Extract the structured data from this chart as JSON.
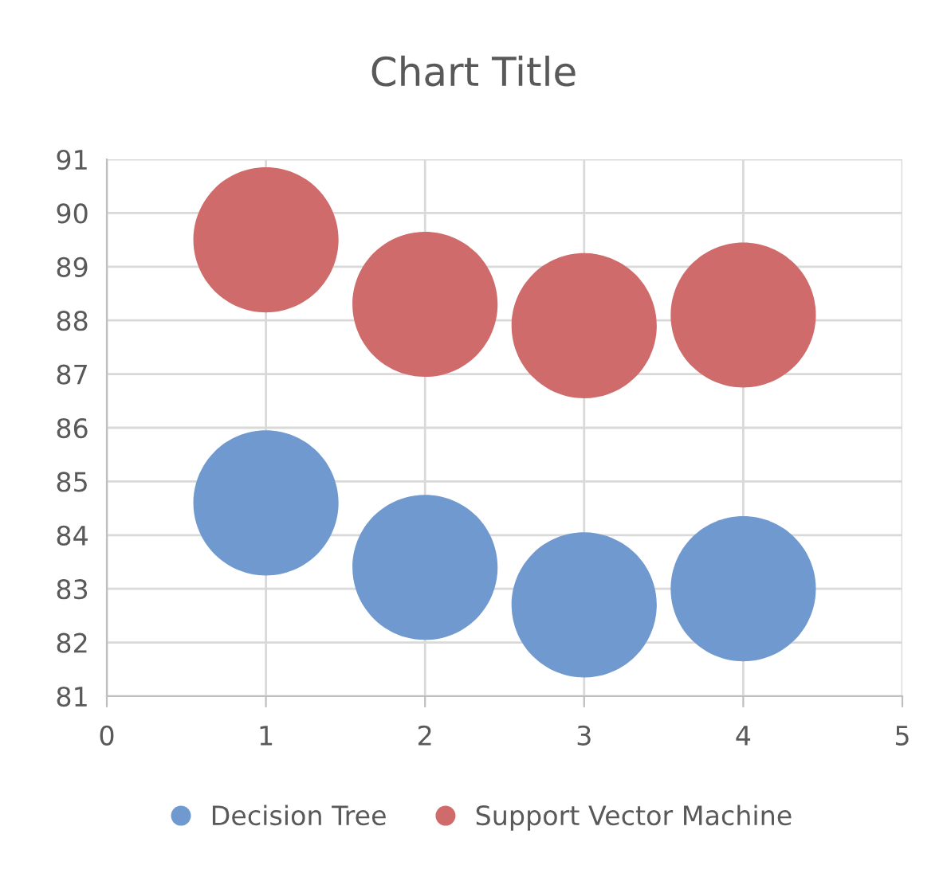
{
  "chart_data": {
    "type": "bubble",
    "title": "Chart Title",
    "x": [
      1,
      2,
      3,
      4
    ],
    "series": [
      {
        "name": "Decision Tree",
        "color": "#6f99cf",
        "values": [
          84.6,
          83.4,
          82.7,
          83.0
        ],
        "sizes": [
          1,
          1,
          1,
          1
        ]
      },
      {
        "name": "Support Vector Machine",
        "color": "#cf6b6b",
        "values": [
          89.5,
          88.3,
          87.9,
          88.1
        ],
        "sizes": [
          1,
          1,
          1,
          1
        ]
      }
    ],
    "xlim": [
      0,
      5
    ],
    "xticks": [
      0,
      1,
      2,
      3,
      4,
      5
    ],
    "ylim": [
      81,
      91
    ],
    "yticks": [
      81,
      82,
      83,
      84,
      85,
      86,
      87,
      88,
      89,
      90,
      91
    ],
    "grid": true,
    "legend": "bottom"
  }
}
